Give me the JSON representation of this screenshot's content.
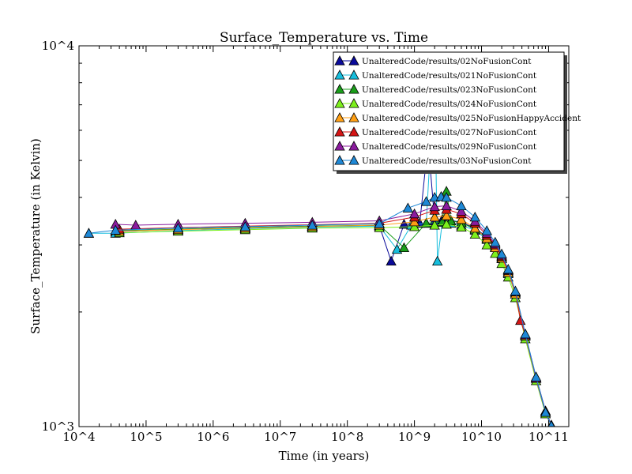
{
  "chart_data": {
    "type": "line",
    "title": "Surface_Temperature vs. Time",
    "xlabel": "Time (in years)",
    "ylabel": "Surface_Temperature (in Kelvin)",
    "x_scale": "log",
    "y_scale": "log",
    "xlim": [
      10000,
      200000000000
    ],
    "ylim": [
      1000,
      10000
    ],
    "x_tick_labels": [
      "10^4",
      "10^5",
      "10^6",
      "10^7",
      "10^8",
      "10^9",
      "10^10",
      "10^11"
    ],
    "x_tick_values": [
      10000,
      100000,
      1000000,
      10000000,
      100000000,
      1000000000,
      10000000000,
      100000000000
    ],
    "y_tick_labels": [
      "10^3",
      "10^4"
    ],
    "y_tick_values": [
      1000,
      10000
    ],
    "grid": false,
    "legend_position": "top-right",
    "marker": "triangle-up",
    "series": [
      {
        "name": "UnalteredCode/results/02NoFusionCont",
        "color": "#0a0a9a",
        "x": [
          35000,
          300000,
          3000000,
          30000000,
          300000000,
          450000000,
          700000000,
          1200000000,
          1600000000,
          2000000000,
          2600000000,
          3500000000,
          5000000000,
          8000000000,
          12000000000,
          16000000000,
          20000000000,
          25000000000,
          32000000000,
          45000000000,
          65000000000,
          90000000000,
          110000000000
        ],
        "y": [
          3250,
          3300,
          3330,
          3360,
          3370,
          2720,
          3400,
          3420,
          5600,
          3470,
          3500,
          3480,
          3440,
          3320,
          3150,
          2980,
          2800,
          2550,
          2250,
          1750,
          1350,
          1100,
          1010
        ]
      },
      {
        "name": "UnalteredCode/results/021NoFusionCont",
        "color": "#17bedd",
        "x": [
          14000,
          35000,
          300000,
          3000000,
          30000000,
          300000000,
          550000000,
          900000000,
          1500000000,
          2000000000,
          2200000000,
          2600000000,
          3500000000,
          5000000000,
          8000000000,
          12000000000,
          16000000000,
          20000000000,
          25000000000,
          32000000000,
          45000000000,
          65000000000,
          90000000000,
          110000000000
        ],
        "y": [
          3220,
          3220,
          3270,
          3310,
          3340,
          3360,
          2920,
          3380,
          3420,
          8600,
          2720,
          3440,
          3420,
          3380,
          3280,
          3100,
          2950,
          2760,
          2520,
          2230,
          1730,
          1340,
          1090,
          1005
        ]
      },
      {
        "name": "UnalteredCode/results/023NoFusionCont",
        "color": "#1b9e1b",
        "x": [
          40000,
          300000,
          3000000,
          30000000,
          300000000,
          700000000,
          1500000000,
          2600000000,
          3000000000,
          3500000000,
          5000000000,
          8000000000,
          12000000000,
          16000000000,
          20000000000,
          25000000000,
          32000000000,
          45000000000,
          65000000000,
          90000000000,
          110000000000
        ],
        "y": [
          3270,
          3300,
          3330,
          3360,
          3380,
          2950,
          3420,
          3450,
          4150,
          3470,
          3430,
          3300,
          3130,
          2960,
          2780,
          2540,
          2230,
          1730,
          1340,
          1090,
          1005
        ]
      },
      {
        "name": "UnalteredCode/results/024NoFusionCont",
        "color": "#7df01c",
        "x": [
          40000,
          300000,
          3000000,
          30000000,
          300000000,
          1000000000,
          2000000000,
          3000000000,
          5000000000,
          8000000000,
          12000000000,
          16000000000,
          20000000000,
          25000000000,
          32000000000,
          45000000000,
          65000000000,
          90000000000,
          110000000000
        ],
        "y": [
          3230,
          3260,
          3290,
          3320,
          3330,
          3350,
          3380,
          3400,
          3340,
          3200,
          3000,
          2850,
          2680,
          2470,
          2180,
          1700,
          1320,
          1080,
          1005
        ]
      },
      {
        "name": "UnalteredCode/results/025NoFusionHappyAccident",
        "color": "#ff9f14",
        "x": [
          40000,
          300000,
          3000000,
          30000000,
          300000000,
          1000000000,
          2000000000,
          3000000000,
          5000000000,
          8000000000,
          12000000000,
          16000000000,
          20000000000,
          25000000000,
          32000000000,
          45000000000,
          65000000000,
          90000000000,
          110000000000
        ],
        "y": [
          3260,
          3290,
          3320,
          3350,
          3380,
          3450,
          3550,
          3580,
          3500,
          3320,
          3120,
          2950,
          2770,
          2540,
          2230,
          1730,
          1340,
          1090,
          1005
        ]
      },
      {
        "name": "UnalteredCode/results/027NoFusionCont",
        "color": "#d41414",
        "x": [
          40000,
          300000,
          3000000,
          30000000,
          300000000,
          1000000000,
          2000000000,
          3000000000,
          5000000000,
          8000000000,
          12000000000,
          16000000000,
          20000000000,
          25000000000,
          32000000000,
          38000000000,
          45000000000,
          65000000000,
          90000000000,
          110000000000
        ],
        "y": [
          3300,
          3330,
          3360,
          3390,
          3420,
          3550,
          3700,
          3720,
          3620,
          3420,
          3180,
          3000,
          2800,
          2570,
          2260,
          1900,
          1740,
          1340,
          1090,
          1005
        ]
      },
      {
        "name": "UnalteredCode/results/029NoFusionCont",
        "color": "#8b1b9e",
        "x": [
          35000,
          70000,
          300000,
          3000000,
          30000000,
          300000000,
          1000000000,
          2000000000,
          3000000000,
          5000000000,
          8000000000,
          12000000000,
          16000000000,
          20000000000,
          25000000000,
          32000000000,
          45000000000,
          65000000000,
          90000000000,
          110000000000
        ],
        "y": [
          3400,
          3380,
          3400,
          3420,
          3440,
          3470,
          3620,
          3780,
          3800,
          3680,
          3460,
          3220,
          3020,
          2820,
          2580,
          2260,
          1740,
          1340,
          1090,
          1005
        ]
      },
      {
        "name": "UnalteredCode/results/03NoFusionCont",
        "color": "#1e88d6",
        "x": [
          14000,
          35000,
          300000,
          3000000,
          30000000,
          300000000,
          800000000,
          1500000000,
          2000000000,
          2500000000,
          3000000000,
          5000000000,
          8000000000,
          12000000000,
          16000000000,
          20000000000,
          25000000000,
          32000000000,
          45000000000,
          65000000000,
          90000000000,
          110000000000
        ],
        "y": [
          3220,
          3280,
          3320,
          3350,
          3380,
          3410,
          3750,
          3900,
          4000,
          4020,
          4000,
          3800,
          3550,
          3270,
          3050,
          2840,
          2590,
          2270,
          1750,
          1350,
          1090,
          1005
        ]
      }
    ]
  }
}
